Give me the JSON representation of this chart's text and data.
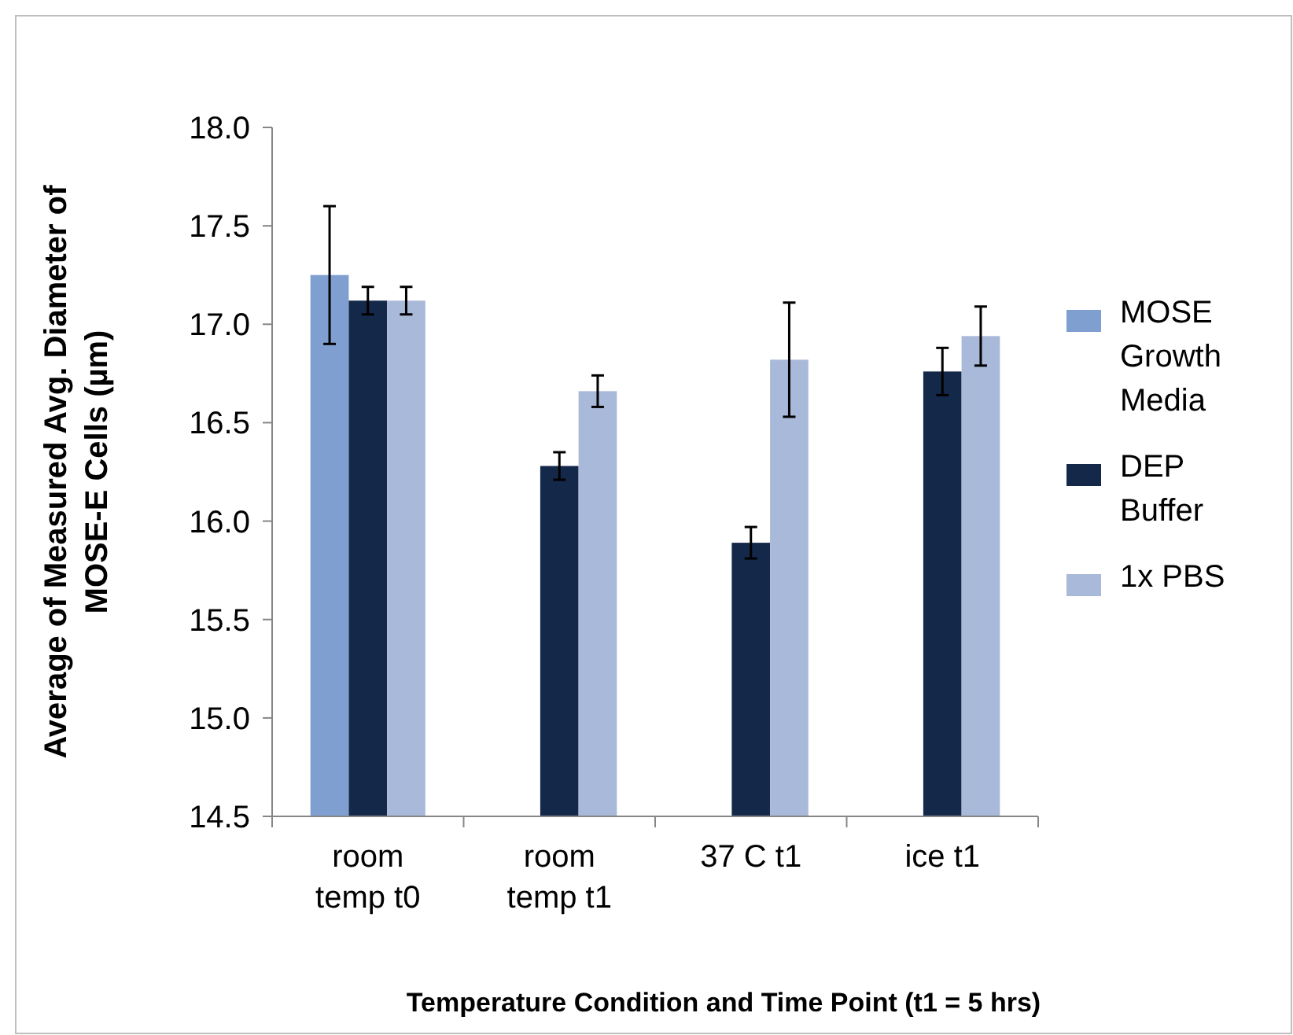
{
  "chart_data": {
    "type": "bar",
    "xlabel": "Temperature Condition and Time Point (t1 = 5 hrs)",
    "ylabel": "Average of Measured Avg. Diameter of MOSE-E Cells (µm)",
    "categories": [
      "room temp t0",
      "room temp t1",
      "37 C t1",
      "ice t1"
    ],
    "series": [
      {
        "name": "MOSE Growth Media",
        "color": "#7f9fd0",
        "values": [
          17.25,
          null,
          null,
          null
        ],
        "errors": [
          0.35,
          null,
          null,
          null
        ]
      },
      {
        "name": "DEP Buffer",
        "color": "#14284a",
        "values": [
          17.12,
          16.28,
          15.89,
          16.76
        ],
        "errors": [
          0.07,
          0.07,
          0.08,
          0.12
        ]
      },
      {
        "name": "1x PBS",
        "color": "#a9b9d9",
        "values": [
          17.12,
          16.66,
          16.82,
          16.94
        ],
        "errors": [
          0.07,
          0.08,
          0.29,
          0.15
        ]
      }
    ],
    "ylim": [
      14.5,
      18.0
    ],
    "yticks": [
      {
        "value": 14.5,
        "label": "14.5"
      },
      {
        "value": 15,
        "label": "15.0"
      },
      {
        "value": 15.5,
        "label": "15.5"
      },
      {
        "value": 16,
        "label": "16.0"
      },
      {
        "value": 16.5,
        "label": "16.5"
      },
      {
        "value": 17,
        "label": "17.0"
      },
      {
        "value": 17.5,
        "label": "17.5"
      },
      {
        "value": 18,
        "label": "18.0"
      }
    ],
    "legend": "right"
  }
}
